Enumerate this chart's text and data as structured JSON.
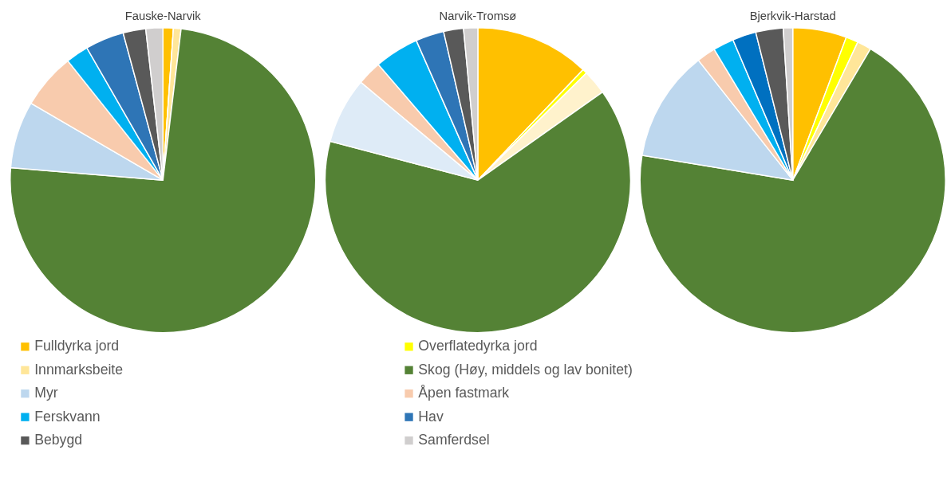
{
  "chart_data": [
    {
      "type": "pie",
      "title": "Fauske-Narvik",
      "legend": "bottom",
      "categories": [
        "Fulldyrka jord",
        "Overflatedyrka jord",
        "Innmarksbeite",
        "Skog (Høy, middels og lav bonitet)",
        "Myr",
        "Åpen fastmark",
        "Ferskvann",
        "Hav",
        "Bebygd",
        "Samferdsel"
      ],
      "values": [
        1.1,
        0,
        0.8,
        74.4,
        7.1,
        5.9,
        2.4,
        4.1,
        2.4,
        1.8
      ],
      "colors": [
        "#ffc000",
        "#ffff00",
        "#ffe699",
        "#548235",
        "#bdd7ee",
        "#f8cbad",
        "#00b0f0",
        "#2e75b6",
        "#595959",
        "#d0cece"
      ]
    },
    {
      "type": "pie",
      "title": "Narvik-Tromsø",
      "categories": [
        null,
        null,
        null,
        null,
        null,
        null,
        null,
        null,
        null,
        null
      ],
      "values": [
        12.1,
        0.5,
        2.6,
        63.9,
        7.0,
        2.6,
        4.7,
        3.0,
        2.1,
        1.5
      ],
      "colors": [
        "#ffc000",
        "#ffff00",
        "#fff2cc",
        "#548235",
        "#deebf7",
        "#f8cbad",
        "#00b0f0",
        "#2e75b6",
        "#595959",
        "#d0cece"
      ]
    },
    {
      "type": "pie",
      "title": "Bjerkvik-Harstad",
      "categories": [
        null,
        null,
        null,
        null,
        null,
        null,
        null,
        null,
        null,
        null
      ],
      "values": [
        5.7,
        1.3,
        1.5,
        69.1,
        11.8,
        2.0,
        2.2,
        2.5,
        2.9,
        1.0
      ],
      "colors": [
        "#ffc000",
        "#ffff00",
        "#ffe699",
        "#548235",
        "#bdd7ee",
        "#f8cbad",
        "#00b0f0",
        "#0070c0",
        "#595959",
        "#d0cece"
      ]
    }
  ]
}
